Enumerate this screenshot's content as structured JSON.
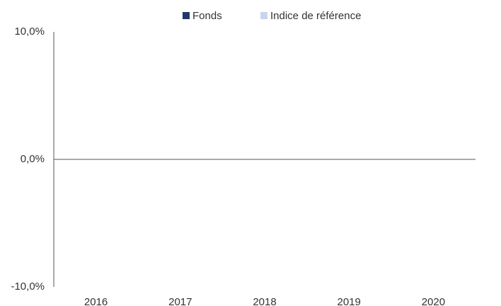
{
  "chart_data": {
    "type": "bar",
    "categories": [
      "2016",
      "2017",
      "2018",
      "2019",
      "2020"
    ],
    "series": [
      {
        "name": "Fonds",
        "color": "#1f3a6b",
        "values": [
          null,
          null,
          null,
          null,
          null
        ]
      },
      {
        "name": "Indice de référence",
        "color": "#c6d6ef",
        "values": [
          null,
          null,
          null,
          null,
          null
        ]
      }
    ],
    "ylim": [
      -10,
      10
    ],
    "yticks": [
      {
        "value": 10,
        "label": "10,0%"
      },
      {
        "value": 0,
        "label": "0,0%"
      },
      {
        "value": -10,
        "label": "-10,0%"
      }
    ],
    "grid": false,
    "legend": "top"
  }
}
